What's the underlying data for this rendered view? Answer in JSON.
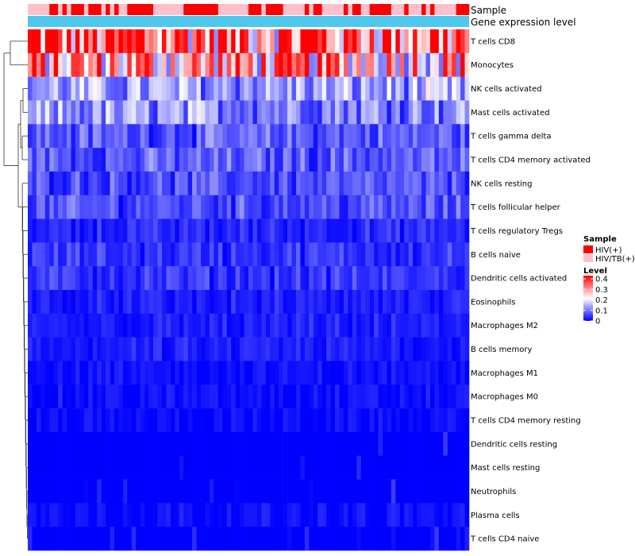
{
  "chart_data": {
    "type": "heatmap",
    "annotation_labels": [
      "Sample",
      "Gene expression level"
    ],
    "rows": [
      "T cells CD8",
      "Monocytes",
      "NK cells activated",
      "Mast cells activated",
      "T cells gamma delta",
      "T cells CD4 memory activated",
      "NK cells resting",
      "T cells follicular helper",
      "T cells regulatory  Tregs",
      "B cells naive",
      "Dendritic cells activated",
      "Eosinophils",
      "Macrophages M2",
      "B cells memory",
      "Macrophages M1",
      "Macrophages M0",
      "T cells CD4 memory resting",
      "Dendritic cells resting",
      "Mast cells resting",
      "Neutrophils",
      "Plasma cells",
      "T cells CD4 naive"
    ],
    "row_mean_level": [
      0.33,
      0.26,
      0.12,
      0.11,
      0.07,
      0.07,
      0.06,
      0.06,
      0.03,
      0.04,
      0.04,
      0.02,
      0.02,
      0.02,
      0.01,
      0.01,
      0.005,
      0.004,
      0.002,
      0.001,
      0.01,
      0.004
    ],
    "sample_groups": [
      "HIV/TB(+)",
      "HIV/TB(+)",
      "HIV/TB(+)",
      "HIV/TB(+)",
      "HIV/TB(+)",
      "HIV(+)",
      "HIV(+)",
      "HIV/TB(+)",
      "HIV(+)",
      "HIV/TB(+)",
      "HIV(+)",
      "HIV(+)",
      "HIV(+)",
      "HIV/TB(+)",
      "HIV(+)",
      "HIV(+)",
      "HIV(+)",
      "HIV/TB(+)",
      "HIV(+)",
      "HIV/TB(+)",
      "HIV(+)",
      "HIV/TB(+)",
      "HIV/TB(+)",
      "HIV(+)",
      "HIV(+)",
      "HIV(+)",
      "HIV(+)",
      "HIV(+)",
      "HIV(+)",
      "HIV/TB(+)",
      "HIV/TB(+)",
      "HIV/TB(+)",
      "HIV/TB(+)",
      "HIV/TB(+)",
      "HIV/TB(+)",
      "HIV/TB(+)",
      "HIV(+)",
      "HIV(+)",
      "HIV(+)",
      "HIV(+)",
      "HIV(+)",
      "HIV(+)",
      "HIV(+)",
      "HIV(+)",
      "HIV/TB(+)",
      "HIV/TB(+)",
      "HIV/TB(+)",
      "HIV/TB(+)",
      "HIV/TB(+)",
      "HIV/TB(+)",
      "HIV/TB(+)",
      "HIV(+)",
      "HIV(+)",
      "HIV(+)",
      "HIV/TB(+)",
      "HIV(+)",
      "HIV(+)",
      "HIV(+)",
      "HIV(+)",
      "HIV/TB(+)",
      "HIV/TB(+)",
      "HIV/TB(+)",
      "HIV/TB(+)",
      "HIV/TB(+)",
      "HIV(+)",
      "HIV/TB(+)",
      "HIV(+)",
      "HIV(+)",
      "HIV/TB(+)",
      "HIV/TB(+)",
      "HIV/TB(+)",
      "HIV/TB(+)",
      "HIV/TB(+)",
      "HIV(+)",
      "HIV/TB(+)",
      "HIV(+)",
      "HIV(+)",
      "HIV/TB(+)",
      "HIV/TB(+)",
      "HIV(+)",
      "HIV(+)",
      "HIV(+)",
      "HIV(+)",
      "HIV(+)",
      "HIV/TB(+)",
      "HIV/TB(+)",
      "HIV/TB(+)",
      "HIV(+)",
      "HIV/TB(+)",
      "HIV/TB(+)",
      "HIV/TB(+)",
      "HIV(+)",
      "HIV/TB(+)",
      "HIV(+)",
      "HIV/TB(+)",
      "HIV/TB(+)",
      "HIV/TB(+)",
      "HIV/TB(+)",
      "HIV/TB(+)",
      "HIV(+)",
      "HIV(+)",
      "HIV(+)"
    ],
    "group_colors": {
      "HIV(+)": "#ff0000",
      "HIV/TB(+)": "#ffc0cb"
    },
    "expression_bar_color": "#4fc8ed",
    "legend": {
      "sample_title": "Sample",
      "sample_entries": [
        "HIV(+)",
        "HIV/TB(+)"
      ],
      "level_title": "Level",
      "level_ticks": [
        "0.4",
        "0.3",
        "0.2",
        "0.1",
        "0"
      ],
      "level_range": [
        0,
        0.4
      ],
      "color_low": "#0000ff",
      "color_mid": "#ffffff",
      "color_high": "#ff0000"
    },
    "xlabel": "",
    "ylabel": ""
  }
}
